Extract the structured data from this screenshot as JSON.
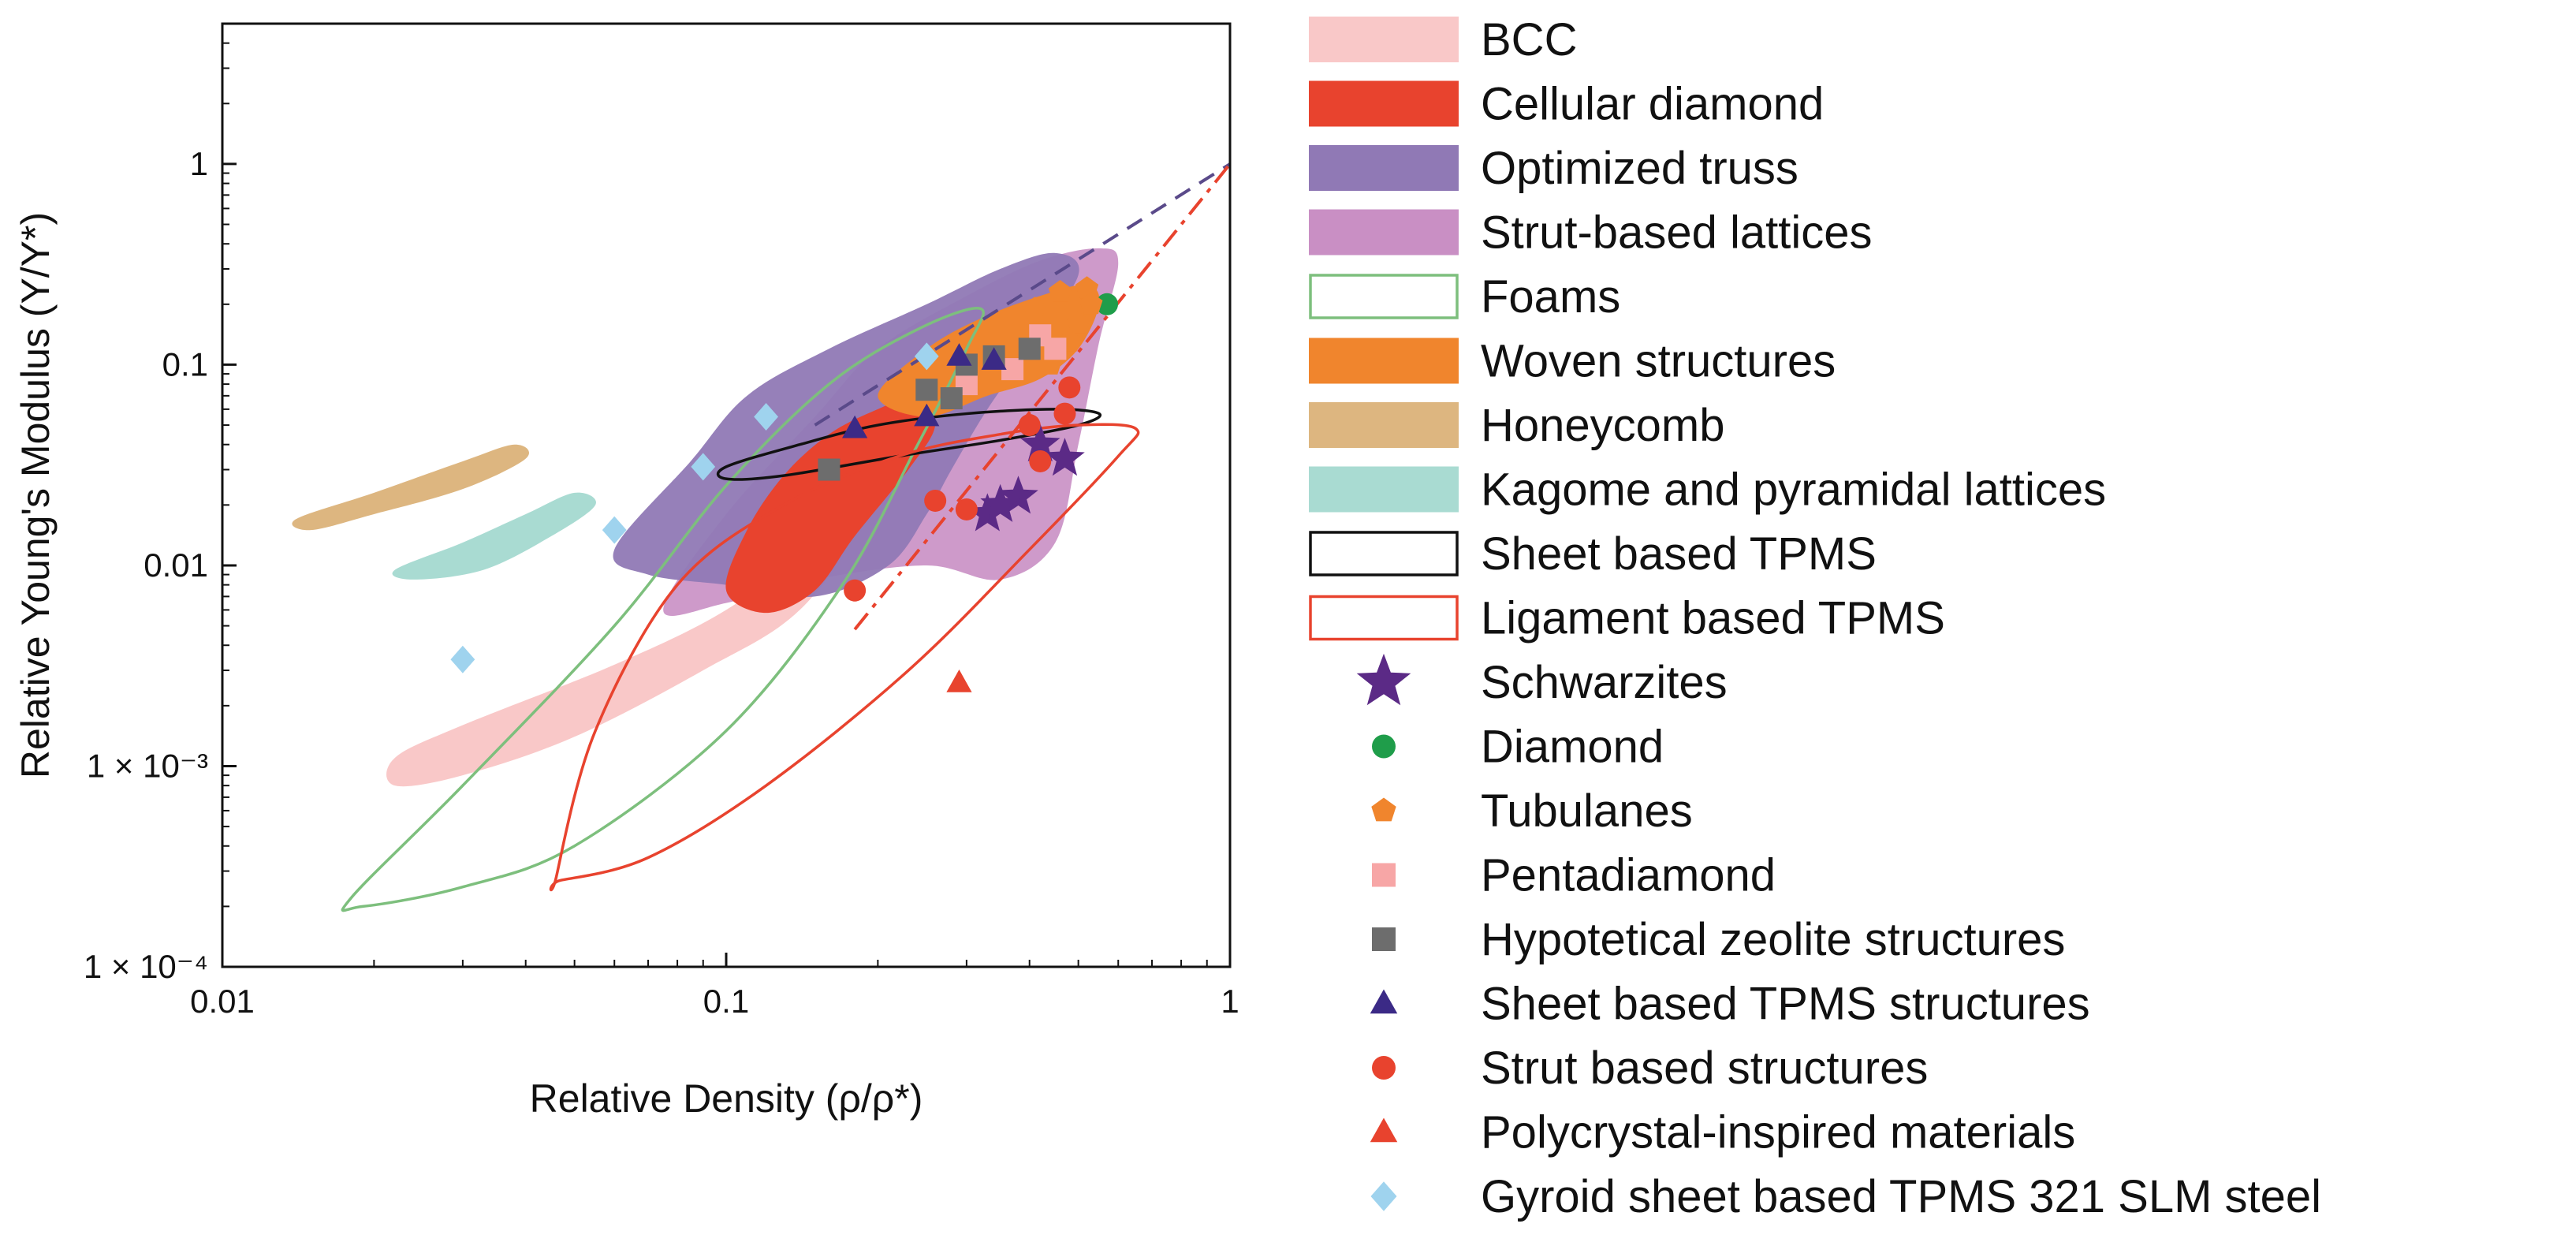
{
  "chart_data": {
    "type": "scatter",
    "xscale": "log",
    "yscale": "log",
    "xlim": [
      0.01,
      1
    ],
    "ylim": [
      0.0001,
      5
    ],
    "xlabel": "Relative Density (ρ/ρ*)",
    "ylabel": "Relative Young's Modulus (Y/Y*)",
    "x_ticks": [
      0.01,
      0.1,
      1
    ],
    "x_tick_labels": [
      "0.01",
      "0.1",
      "1"
    ],
    "y_ticks": [
      0.0001,
      0.001,
      0.01,
      0.1,
      1
    ],
    "y_tick_labels": [
      "1 × 10⁻⁴",
      "1 × 10⁻³",
      "0.01",
      "0.1",
      "1"
    ],
    "legend_position": "right",
    "regions": [
      {
        "name": "BCC",
        "style": "fill",
        "color": "#f9c8c8",
        "opacity": 1,
        "points": [
          [
            0.022,
            0.0011
          ],
          [
            0.03,
            0.0016
          ],
          [
            0.06,
            0.0032
          ],
          [
            0.1,
            0.006
          ],
          [
            0.15,
            0.013
          ],
          [
            0.2,
            0.026
          ],
          [
            0.2,
            0.02
          ],
          [
            0.14,
            0.006
          ],
          [
            0.09,
            0.003
          ],
          [
            0.05,
            0.0014
          ],
          [
            0.03,
            0.0009
          ],
          [
            0.022,
            0.0008
          ]
        ]
      },
      {
        "name": "Strut-based lattices",
        "style": "fill",
        "color": "#c98fc4",
        "opacity": 0.9,
        "points": [
          [
            0.075,
            0.006
          ],
          [
            0.1,
            0.018
          ],
          [
            0.15,
            0.055
          ],
          [
            0.2,
            0.12
          ],
          [
            0.3,
            0.22
          ],
          [
            0.42,
            0.33
          ],
          [
            0.55,
            0.38
          ],
          [
            0.6,
            0.32
          ],
          [
            0.55,
            0.13
          ],
          [
            0.5,
            0.04
          ],
          [
            0.45,
            0.013
          ],
          [
            0.35,
            0.0085
          ],
          [
            0.25,
            0.01
          ],
          [
            0.15,
            0.0085
          ],
          [
            0.1,
            0.0065
          ]
        ]
      },
      {
        "name": "Optimized truss",
        "style": "fill",
        "color": "#9079b5",
        "opacity": 0.95,
        "points": [
          [
            0.06,
            0.012
          ],
          [
            0.085,
            0.033
          ],
          [
            0.11,
            0.07
          ],
          [
            0.16,
            0.12
          ],
          [
            0.25,
            0.2
          ],
          [
            0.35,
            0.3
          ],
          [
            0.45,
            0.36
          ],
          [
            0.5,
            0.28
          ],
          [
            0.4,
            0.12
          ],
          [
            0.33,
            0.06
          ],
          [
            0.28,
            0.03
          ],
          [
            0.25,
            0.018
          ],
          [
            0.21,
            0.01
          ],
          [
            0.15,
            0.007
          ],
          [
            0.1,
            0.008
          ],
          [
            0.07,
            0.009
          ]
        ]
      },
      {
        "name": "Cellular diamond",
        "style": "fill",
        "color": "#e8432e",
        "opacity": 1,
        "points": [
          [
            0.1,
            0.0075
          ],
          [
            0.11,
            0.015
          ],
          [
            0.13,
            0.028
          ],
          [
            0.16,
            0.045
          ],
          [
            0.2,
            0.06
          ],
          [
            0.24,
            0.07
          ],
          [
            0.26,
            0.05
          ],
          [
            0.23,
            0.03
          ],
          [
            0.18,
            0.014
          ],
          [
            0.15,
            0.0075
          ],
          [
            0.12,
            0.0058
          ]
        ]
      },
      {
        "name": "Woven structures",
        "style": "fill",
        "color": "#f0852d",
        "opacity": 1,
        "points": [
          [
            0.2,
            0.07
          ],
          [
            0.25,
            0.12
          ],
          [
            0.32,
            0.17
          ],
          [
            0.42,
            0.22
          ],
          [
            0.52,
            0.25
          ],
          [
            0.55,
            0.2
          ],
          [
            0.5,
            0.12
          ],
          [
            0.42,
            0.085
          ],
          [
            0.33,
            0.07
          ],
          [
            0.25,
            0.055
          ]
        ]
      },
      {
        "name": "Honeycomb",
        "style": "fill",
        "color": "#ddb680",
        "opacity": 1,
        "points": [
          [
            0.014,
            0.017
          ],
          [
            0.02,
            0.023
          ],
          [
            0.03,
            0.033
          ],
          [
            0.038,
            0.04
          ],
          [
            0.04,
            0.034
          ],
          [
            0.03,
            0.024
          ],
          [
            0.02,
            0.018
          ],
          [
            0.015,
            0.015
          ]
        ]
      },
      {
        "name": "Kagome and pyramidal lattices",
        "style": "fill",
        "color": "#a9dbd2",
        "opacity": 1,
        "points": [
          [
            0.022,
            0.0095
          ],
          [
            0.03,
            0.013
          ],
          [
            0.04,
            0.018
          ],
          [
            0.05,
            0.023
          ],
          [
            0.055,
            0.02
          ],
          [
            0.045,
            0.014
          ],
          [
            0.033,
            0.0095
          ],
          [
            0.024,
            0.0085
          ]
        ]
      },
      {
        "name": "Foams",
        "style": "outline",
        "color": "#7dbf7d",
        "points": [
          [
            0.018,
            0.00022
          ],
          [
            0.03,
            0.0008
          ],
          [
            0.06,
            0.005
          ],
          [
            0.1,
            0.025
          ],
          [
            0.16,
            0.08
          ],
          [
            0.24,
            0.15
          ],
          [
            0.32,
            0.19
          ],
          [
            0.3,
            0.12
          ],
          [
            0.24,
            0.04
          ],
          [
            0.17,
            0.008
          ],
          [
            0.1,
            0.0015
          ],
          [
            0.05,
            0.0004
          ],
          [
            0.03,
            0.00025
          ],
          [
            0.019,
            0.0002
          ]
        ]
      },
      {
        "name": "Sheet based TPMS",
        "style": "outline",
        "color": "#111111",
        "points": [
          [
            0.1,
            0.031
          ],
          [
            0.14,
            0.04
          ],
          [
            0.2,
            0.05
          ],
          [
            0.3,
            0.057
          ],
          [
            0.45,
            0.06
          ],
          [
            0.55,
            0.057
          ],
          [
            0.5,
            0.05
          ],
          [
            0.35,
            0.042
          ],
          [
            0.22,
            0.035
          ],
          [
            0.13,
            0.028
          ],
          [
            0.1,
            0.027
          ]
        ]
      },
      {
        "name": "Ligament based TPMS",
        "style": "outline",
        "color": "#e8432e",
        "points": [
          [
            0.046,
            0.00028
          ],
          [
            0.055,
            0.0015
          ],
          [
            0.08,
            0.008
          ],
          [
            0.13,
            0.02
          ],
          [
            0.22,
            0.035
          ],
          [
            0.35,
            0.045
          ],
          [
            0.5,
            0.05
          ],
          [
            0.65,
            0.048
          ],
          [
            0.6,
            0.035
          ],
          [
            0.4,
            0.012
          ],
          [
            0.23,
            0.003
          ],
          [
            0.12,
            0.0008
          ],
          [
            0.07,
            0.00035
          ],
          [
            0.047,
            0.00027
          ]
        ]
      }
    ],
    "lines": [
      {
        "style": "dashed",
        "color": "#5a4a8a",
        "points": [
          [
            0.15,
            0.05
          ],
          [
            1,
            1
          ]
        ]
      },
      {
        "style": "dashdot",
        "color": "#e8432e",
        "points": [
          [
            0.18,
            0.0048
          ],
          [
            1,
            1
          ]
        ]
      }
    ],
    "series": [
      {
        "name": "Schwarzites",
        "marker": "star",
        "color": "#5b2a86",
        "points": [
          [
            0.33,
            0.018
          ],
          [
            0.38,
            0.022
          ],
          [
            0.42,
            0.04
          ],
          [
            0.47,
            0.034
          ],
          [
            0.35,
            0.02
          ]
        ]
      },
      {
        "name": "Diamond",
        "marker": "circle",
        "color": "#1f9d4a",
        "points": [
          [
            0.57,
            0.2
          ]
        ]
      },
      {
        "name": "Tubulanes",
        "marker": "pentagon",
        "color": "#f0852d",
        "points": [
          [
            0.46,
            0.23
          ],
          [
            0.52,
            0.24
          ],
          [
            0.5,
            0.16
          ],
          [
            0.48,
            0.13
          ],
          [
            0.44,
            0.1
          ],
          [
            0.41,
            0.19
          ],
          [
            0.53,
            0.2
          ]
        ]
      },
      {
        "name": "Pentadiamond",
        "marker": "square",
        "color": "#f7a6a6",
        "points": [
          [
            0.42,
            0.14
          ],
          [
            0.37,
            0.095
          ],
          [
            0.3,
            0.08
          ],
          [
            0.45,
            0.12
          ]
        ]
      },
      {
        "name": "Hypotetical zeolite structures",
        "marker": "square",
        "color": "#6d6d6d",
        "points": [
          [
            0.16,
            0.03
          ],
          [
            0.25,
            0.075
          ],
          [
            0.28,
            0.068
          ],
          [
            0.3,
            0.1
          ],
          [
            0.34,
            0.11
          ],
          [
            0.4,
            0.12
          ]
        ]
      },
      {
        "name": "Sheet based TPMS structures",
        "marker": "triangle",
        "color": "#3b2a86",
        "points": [
          [
            0.18,
            0.048
          ],
          [
            0.25,
            0.055
          ],
          [
            0.29,
            0.11
          ],
          [
            0.34,
            0.105
          ]
        ]
      },
      {
        "name": "Strut based structures",
        "marker": "circle",
        "color": "#e8432e",
        "points": [
          [
            0.18,
            0.0075
          ],
          [
            0.26,
            0.021
          ],
          [
            0.3,
            0.019
          ],
          [
            0.4,
            0.05
          ],
          [
            0.47,
            0.057
          ],
          [
            0.48,
            0.077
          ],
          [
            0.42,
            0.033
          ]
        ]
      },
      {
        "name": "Polycrystal-inspired materials",
        "marker": "triangle",
        "color": "#e8432e",
        "points": [
          [
            0.29,
            0.0026
          ]
        ]
      },
      {
        "name": "Gyroid sheet based TPMS 321 SLM steel",
        "marker": "diamond",
        "color": "#9fd3ee",
        "points": [
          [
            0.03,
            0.0034
          ],
          [
            0.06,
            0.015
          ],
          [
            0.09,
            0.031
          ],
          [
            0.12,
            0.055
          ],
          [
            0.25,
            0.11
          ]
        ]
      }
    ],
    "legend": [
      {
        "label": "BCC",
        "kind": "patch",
        "color": "#f9c8c8"
      },
      {
        "label": "Cellular diamond",
        "kind": "patch",
        "color": "#e8432e"
      },
      {
        "label": "Optimized truss",
        "kind": "patch",
        "color": "#9079b5"
      },
      {
        "label": "Strut-based lattices",
        "kind": "patch",
        "color": "#c98fc4"
      },
      {
        "label": "Foams",
        "kind": "outline",
        "color": "#7dbf7d"
      },
      {
        "label": "Woven structures",
        "kind": "patch",
        "color": "#f0852d"
      },
      {
        "label": "Honeycomb",
        "kind": "patch",
        "color": "#ddb680"
      },
      {
        "label": "Kagome and pyramidal lattices",
        "kind": "patch",
        "color": "#a9dbd2"
      },
      {
        "label": "Sheet based TPMS",
        "kind": "outline",
        "color": "#111111"
      },
      {
        "label": "Ligament based TPMS",
        "kind": "outline",
        "color": "#e8432e"
      },
      {
        "label": "Schwarzites",
        "kind": "marker",
        "marker": "star",
        "color": "#5b2a86"
      },
      {
        "label": "Diamond",
        "kind": "marker",
        "marker": "circle",
        "color": "#1f9d4a"
      },
      {
        "label": "Tubulanes",
        "kind": "marker",
        "marker": "pentagon",
        "color": "#f0852d"
      },
      {
        "label": "Pentadiamond",
        "kind": "marker",
        "marker": "square",
        "color": "#f7a6a6"
      },
      {
        "label": "Hypotetical zeolite structures",
        "kind": "marker",
        "marker": "square",
        "color": "#6d6d6d"
      },
      {
        "label": "Sheet based TPMS structures",
        "kind": "marker",
        "marker": "triangle",
        "color": "#3b2a86"
      },
      {
        "label": "Strut based structures",
        "kind": "marker",
        "marker": "circle",
        "color": "#e8432e"
      },
      {
        "label": "Polycrystal-inspired materials",
        "kind": "marker",
        "marker": "triangle",
        "color": "#e8432e"
      },
      {
        "label": "Gyroid sheet based TPMS 321 SLM steel",
        "kind": "marker",
        "marker": "diamond",
        "color": "#9fd3ee"
      }
    ]
  }
}
